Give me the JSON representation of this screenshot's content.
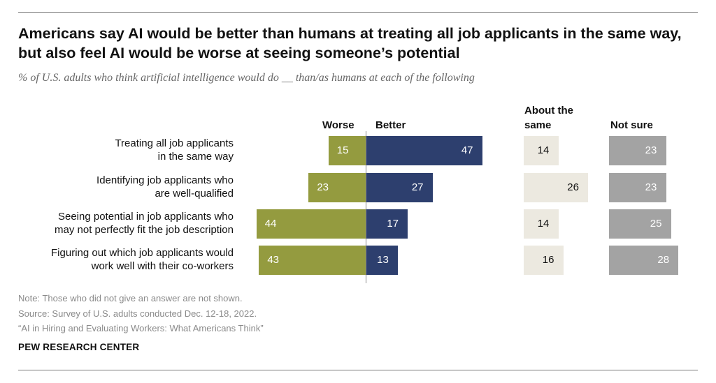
{
  "title": "Americans say AI would be better than humans at treating all job applicants in the same way, but also feel AI would be worse at seeing someone’s potential",
  "subtitle": "% of U.S. adults who think artificial intelligence would do __ than/as humans at each of the following",
  "chart_data": {
    "type": "bar",
    "title": "Americans say AI would be better than humans at treating all job applicants in the same way, but also feel AI would be worse at seeing someone’s potential",
    "subtitle": "% of U.S. adults who think artificial intelligence would do __ than/as humans at each of the following",
    "categories": [
      [
        "Treating all job applicants",
        "in the same way"
      ],
      [
        "Identifying job applicants who",
        "are well-qualified"
      ],
      [
        "Seeing potential in job applicants who",
        "may not perfectly fit the job description"
      ],
      [
        "Figuring out which job applicants would",
        "work well with their co-workers"
      ]
    ],
    "series": [
      {
        "name": "Worse",
        "values": [
          15,
          23,
          44,
          43
        ],
        "color": "#949b3f"
      },
      {
        "name": "Better",
        "values": [
          47,
          27,
          17,
          13
        ],
        "color": "#2d3f6e"
      },
      {
        "name": "About the same",
        "values": [
          14,
          26,
          14,
          16
        ],
        "color": "#ece9e0"
      },
      {
        "name": "Not sure",
        "values": [
          23,
          23,
          25,
          28
        ],
        "color": "#a3a3a3"
      }
    ],
    "headers": {
      "worse": "Worse",
      "better": "Better",
      "same_line1": "About the",
      "same_line2": "same",
      "unsure": "Not sure"
    }
  },
  "notes": {
    "note": "Note: Those who did not give an answer are not shown.",
    "source": "Source: Survey of U.S. adults conducted Dec. 12-18, 2022.",
    "report": "“AI in Hiring and Evaluating Workers: What Americans Think”"
  },
  "brand": "PEW RESEARCH CENTER"
}
